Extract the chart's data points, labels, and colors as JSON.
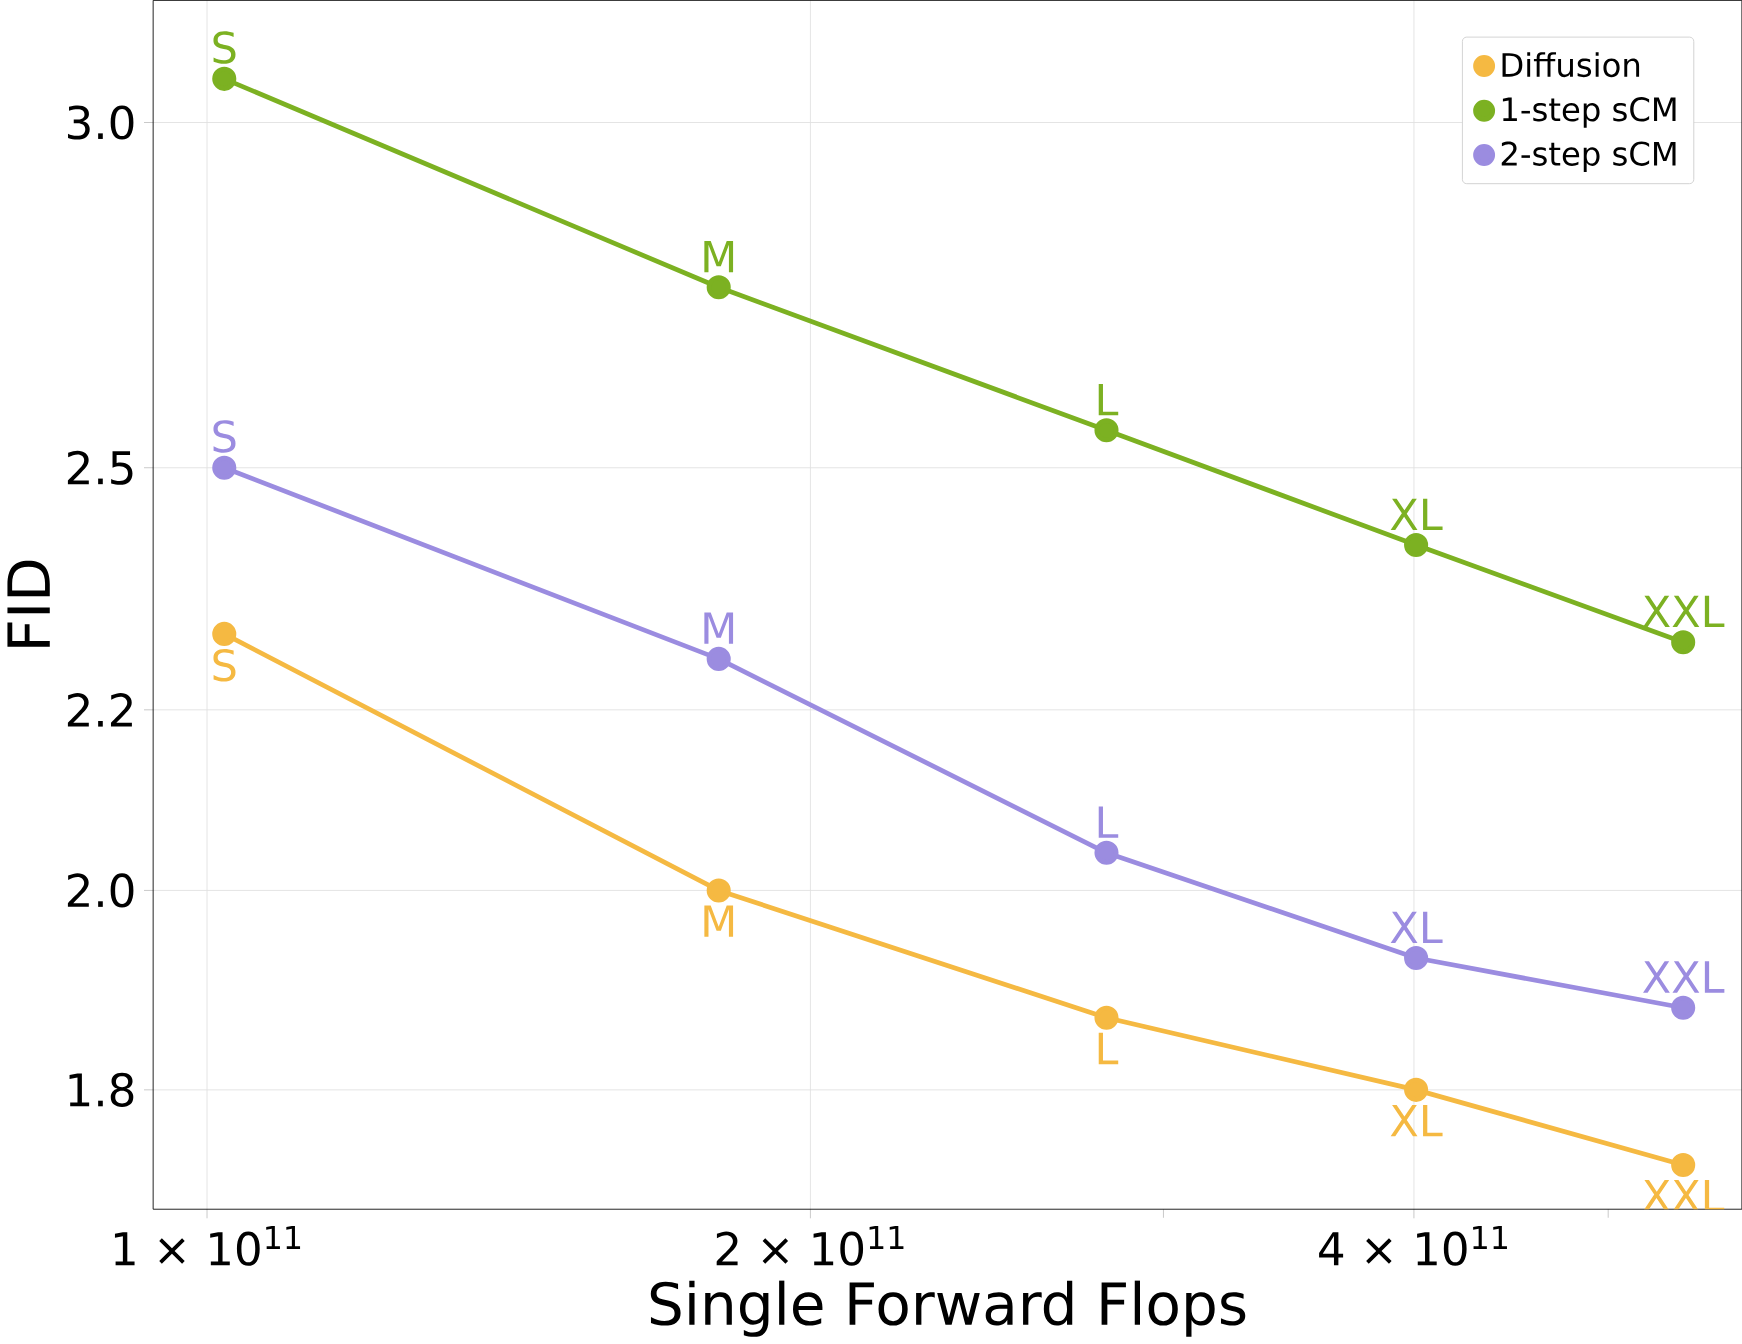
{
  "chart_data": {
    "type": "line",
    "xlabel": "Single Forward Flops",
    "ylabel": "FID",
    "log": "xy",
    "grid": true,
    "legend": "top right",
    "marker": "circle",
    "line_style": "solid",
    "xlim": [
      94000000000.0,
      583000000000.0
    ],
    "ylim": [
      1.69,
      3.2
    ],
    "xticks": [
      {
        "value": 100000000000.0,
        "label": "1 × 10$^{11}$"
      },
      {
        "value": 200000000000.0,
        "label": "2 × 10$^{11}$"
      },
      {
        "value": 400000000000.0,
        "label": "4 × 10$^{11}$"
      }
    ],
    "yticks": [
      1.8,
      {
        "value": 2.0,
        "label": "2.0"
      },
      2.2,
      2.5,
      {
        "value": 3.0,
        "label": "3.0"
      }
    ],
    "x": [
      102000000000.0,
      180000000000.0,
      281000000000.0,
      401000000000.0,
      545000000000.0
    ],
    "series": [
      {
        "name": "Diffusion",
        "color": "#f5b942",
        "values": [
          2.29,
          2.0,
          1.87,
          1.8,
          1.73
        ],
        "value_labels": [
          "S",
          "M",
          "L",
          "XL",
          "XXL"
        ]
      },
      {
        "name": "1-step sCM",
        "color": "#7cb122",
        "values": [
          3.07,
          2.75,
          2.55,
          2.4,
          2.28
        ],
        "value_labels": [
          "S",
          "M",
          "L",
          "XL",
          "XXL"
        ]
      },
      {
        "name": "2-step sCM",
        "color": "#9b8ce0",
        "values": [
          2.5,
          2.26,
          2.04,
          1.93,
          1.88
        ],
        "value_labels": [
          "S",
          "M",
          "L",
          "XL",
          "XXL"
        ]
      }
    ]
  }
}
